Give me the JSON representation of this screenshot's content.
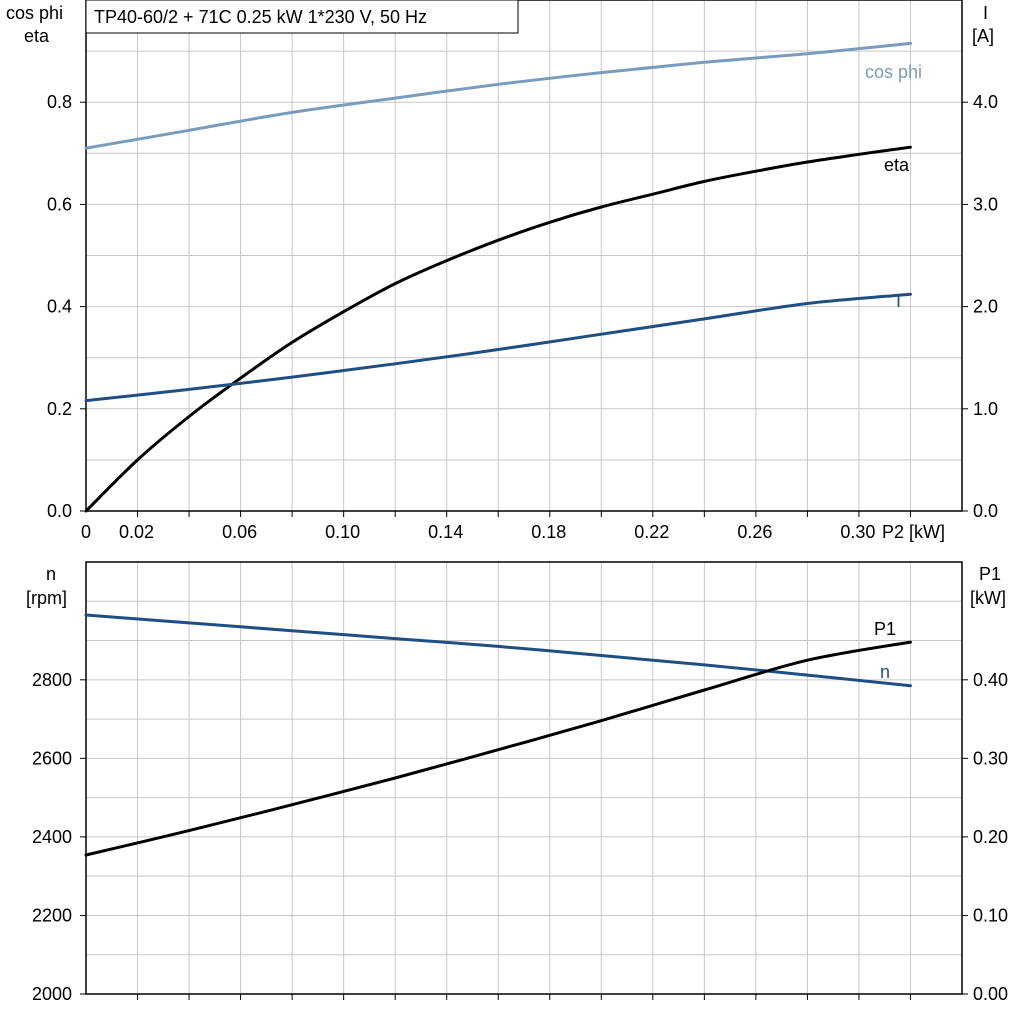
{
  "title": "TP40-60/2 + 71C   0.25 kW   1*230 V, 50 Hz",
  "colors": {
    "cosphi": "#7a9cbc",
    "eta": "#000000",
    "current": "#1f4f82",
    "speed": "#1f4f82",
    "p1": "#000000"
  },
  "chart_data": [
    {
      "type": "line",
      "x_axis": {
        "label": "P2 [kW]",
        "range": [
          0,
          0.34
        ],
        "ticks": [
          "0",
          "0.02",
          "0.06",
          "0.10",
          "0.14",
          "0.18",
          "0.22",
          "0.26",
          "0.30"
        ],
        "tick_values": [
          0,
          0.02,
          0.06,
          0.1,
          0.14,
          0.18,
          0.22,
          0.26,
          0.3
        ]
      },
      "y_left": {
        "label_lines": [
          "cos phi",
          "eta"
        ],
        "range": [
          0,
          1.0
        ],
        "ticks": [
          "0.0",
          "0.2",
          "0.4",
          "0.6",
          "0.8"
        ],
        "tick_values": [
          0,
          0.2,
          0.4,
          0.6,
          0.8
        ]
      },
      "y_right": {
        "label_lines": [
          "I",
          "[A]"
        ],
        "range": [
          0,
          5.0
        ],
        "ticks": [
          "0.0",
          "1.0",
          "2.0",
          "3.0",
          "4.0"
        ],
        "tick_values": [
          0,
          1,
          2,
          3,
          4
        ]
      },
      "grid": true,
      "series": [
        {
          "name": "cos phi",
          "axis": "left",
          "x": [
            0,
            0.04,
            0.08,
            0.12,
            0.16,
            0.2,
            0.24,
            0.28,
            0.32
          ],
          "y": [
            0.71,
            0.745,
            0.78,
            0.808,
            0.835,
            0.858,
            0.878,
            0.895,
            0.915
          ]
        },
        {
          "name": "eta",
          "axis": "left",
          "x": [
            0,
            0.02,
            0.04,
            0.06,
            0.08,
            0.1,
            0.12,
            0.14,
            0.16,
            0.18,
            0.2,
            0.22,
            0.24,
            0.26,
            0.28,
            0.3,
            0.32
          ],
          "y": [
            0,
            0.1,
            0.185,
            0.26,
            0.33,
            0.39,
            0.445,
            0.49,
            0.53,
            0.565,
            0.595,
            0.62,
            0.645,
            0.665,
            0.683,
            0.698,
            0.712
          ]
        },
        {
          "name": "I",
          "axis": "right",
          "x": [
            0,
            0.04,
            0.08,
            0.12,
            0.16,
            0.2,
            0.24,
            0.28,
            0.32
          ],
          "y": [
            1.08,
            1.19,
            1.31,
            1.44,
            1.58,
            1.73,
            1.88,
            2.03,
            2.12
          ]
        }
      ]
    },
    {
      "type": "line",
      "x_axis": {
        "range": [
          0,
          0.34
        ]
      },
      "y_left": {
        "label_lines": [
          "n",
          "[rpm]"
        ],
        "range": [
          2000,
          3100
        ],
        "ticks": [
          "2000",
          "2200",
          "2400",
          "2600",
          "2800"
        ],
        "tick_values": [
          2000,
          2200,
          2400,
          2600,
          2800
        ]
      },
      "y_right": {
        "label_lines": [
          "P1",
          "[kW]"
        ],
        "range": [
          0,
          0.55
        ],
        "ticks": [
          "0.00",
          "0.10",
          "0.20",
          "0.30",
          "0.40"
        ],
        "tick_values": [
          0,
          0.1,
          0.2,
          0.3,
          0.4
        ]
      },
      "grid": true,
      "series": [
        {
          "name": "n",
          "axis": "left",
          "x": [
            0,
            0.04,
            0.08,
            0.12,
            0.16,
            0.2,
            0.24,
            0.28,
            0.32
          ],
          "y": [
            2965,
            2945,
            2925,
            2905,
            2885,
            2862,
            2838,
            2812,
            2785
          ]
        },
        {
          "name": "P1",
          "axis": "right",
          "x": [
            0,
            0.04,
            0.08,
            0.12,
            0.16,
            0.2,
            0.24,
            0.28,
            0.32
          ],
          "y": [
            0.177,
            0.208,
            0.241,
            0.275,
            0.311,
            0.348,
            0.387,
            0.425,
            0.448
          ]
        }
      ]
    }
  ]
}
